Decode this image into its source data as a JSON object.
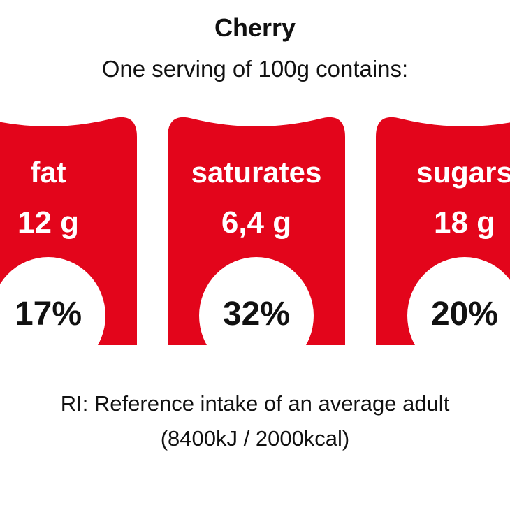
{
  "title": "Cherry",
  "subtitle": "One serving of 100g contains:",
  "colors": {
    "label_red": "#e3051b",
    "pct_bg": "#ffffff"
  },
  "nutrients": [
    {
      "name": "fat",
      "amount": "12 g",
      "percent": "17%",
      "percent_value": 17
    },
    {
      "name": "saturates",
      "amount": "6,4 g",
      "percent": "32%",
      "percent_value": 32
    },
    {
      "name": "sugars",
      "amount": "18 g",
      "percent": "20%",
      "percent_value": 20
    }
  ],
  "footnote": {
    "line1": "RI: Reference intake of an average adult",
    "line2": "(8400kJ / 2000kcal)"
  }
}
